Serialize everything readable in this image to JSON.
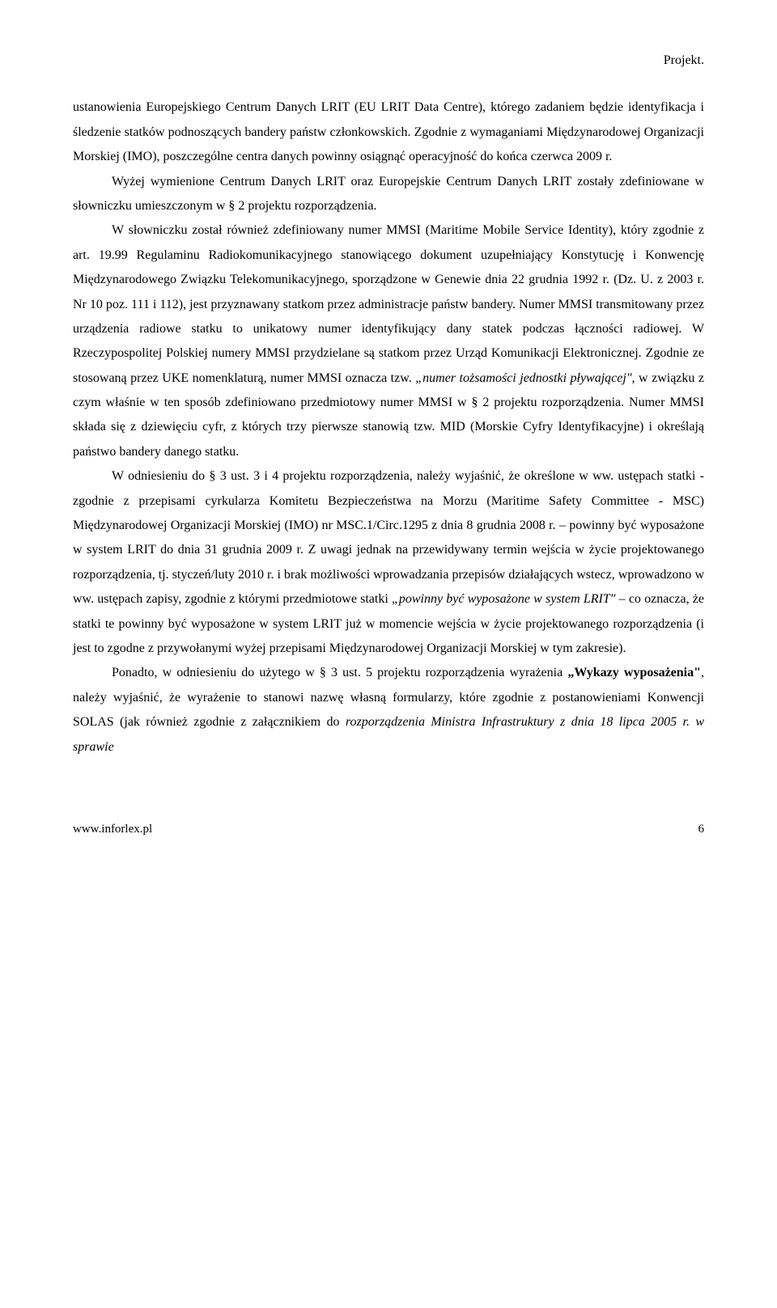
{
  "header": {
    "project_label": "Projekt."
  },
  "body": {
    "p1_part1": "ustanowienia Europejskiego Centrum Danych LRIT (EU LRIT Data Centre), którego zadaniem będzie identyfikacja i śledzenie statków podnoszących bandery państw członkowskich. Zgodnie z wymaganiami Międzynarodowej Organizacji Morskiej (IMO), poszczególne centra danych powinny osiągnąć operacyjność do końca czerwca 2009 r.",
    "p2": "Wyżej wymienione Centrum Danych LRIT oraz Europejskie Centrum Danych LRIT zostały zdefiniowane w słowniczku umieszczonym w § 2 projektu rozporządzenia.",
    "p3_a": "W słowniczku został również zdefiniowany numer MMSI (Maritime Mobile Service Identity), który zgodnie z art. 19.99 Regulaminu Radiokomunikacyjnego stanowiącego dokument uzupełniający Konstytucję i Konwencję Międzynarodowego Związku Telekomunikacyjnego, sporządzone w Genewie dnia 22 grudnia 1992 r. (Dz. U. z 2003 r. Nr 10 poz. 111 i 112), jest przyznawany statkom przez administracje państw bandery. Numer MMSI transmitowany przez urządzenia radiowe statku to unikatowy numer identyfikujący dany statek podczas łączności radiowej. W Rzeczypospolitej Polskiej numery MMSI przydzielane są statkom przez Urząd Komunikacji Elektronicznej. Zgodnie ze stosowaną przez UKE nomenklaturą, numer MMSI oznacza tzw. ",
    "p3_italic1": "„numer tożsamości jednostki pływającej\"",
    "p3_b": ", w związku z czym właśnie w ten sposób zdefiniowano przedmiotowy numer MMSI w § 2 projektu rozporządzenia. Numer MMSI składa się z dziewięciu cyfr, z których trzy pierwsze stanowią tzw. MID (Morskie Cyfry Identyfikacyjne) i określają państwo bandery danego statku.",
    "p4_a": "W odniesieniu do § 3 ust. 3 i 4 projektu rozporządzenia, należy wyjaśnić, że określone w ww. ustępach statki -  zgodnie z przepisami cyrkularza Komitetu Bezpieczeństwa na Morzu (Maritime Safety Committee - MSC) Międzynarodowej Organizacji Morskiej (IMO) nr MSC.1/Circ.1295 z dnia 8 grudnia 2008 r. – powinny być wyposażone w system LRIT do dnia 31 grudnia 2009 r. Z uwagi jednak na przewidywany termin wejścia w życie projektowanego rozporządzenia, tj. styczeń/luty 2010 r. i brak możliwości wprowadzania przepisów działających wstecz, wprowadzono w ww. ustępach zapisy, zgodnie z którymi przedmiotowe statki ",
    "p4_italic1": "„powinny być wyposażone w system LRIT\"",
    "p4_b": " – co oznacza, że statki te powinny być wyposażone w system LRIT już w momencie wejścia w życie projektowanego rozporządzenia (i jest to zgodne z przywołanymi wyżej przepisami Międzynarodowej Organizacji Morskiej  w tym zakresie).",
    "p5_a": "Ponadto, w odniesieniu do użytego w § 3 ust. 5 projektu rozporządzenia wyrażenia ",
    "p5_bold": "„Wykazy wyposażenia\"",
    "p5_b": ", należy wyjaśnić, że wyrażenie to stanowi nazwę własną formularzy, które zgodnie z postanowieniami Konwencji SOLAS (jak również zgodnie z załącznikiem do ",
    "p5_italic": "rozporządzenia Ministra Infrastruktury z dnia 18 lipca 2005 r. w sprawie"
  },
  "footer": {
    "url": "www.inforlex.pl",
    "page_number": "6"
  }
}
